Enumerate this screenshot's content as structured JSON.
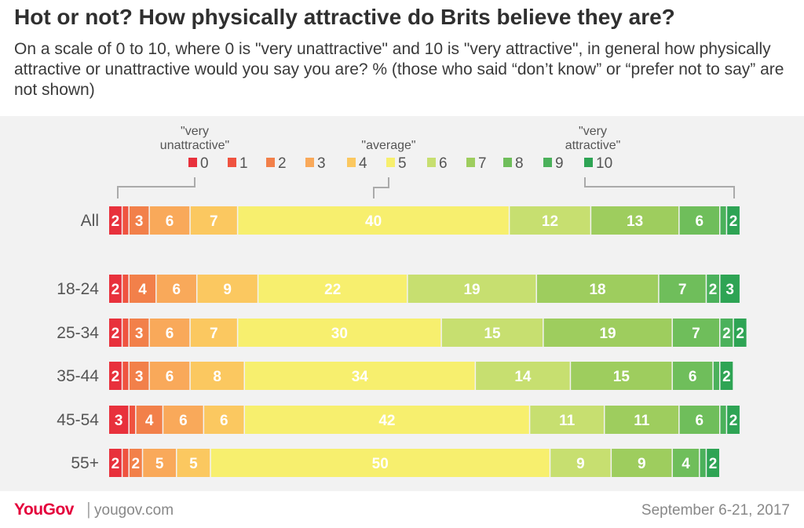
{
  "title": "Hot or not? How physically attractive do Brits believe they are?",
  "subtitle": "On a scale of 0 to 10, where 0 is \"very unattractive\" and 10 is \"very attractive\", in general how physically attractive or unattractive would you say you are? % (those who said “don’t know” or “prefer not to say” are not shown)",
  "footer": {
    "brand": "YouGov",
    "separator": "|",
    "site": "yougov.com",
    "date": "September 6-21, 2017"
  },
  "chart_data": {
    "type": "bar",
    "orientation": "horizontal",
    "stacked": true,
    "unit": "%",
    "legend_position": "top",
    "legend_annotations": [
      "\"very unattractive\"",
      "\"average\"",
      "\"very attractive\""
    ],
    "series_names": [
      "0",
      "1",
      "2",
      "3",
      "4",
      "5",
      "6",
      "7",
      "8",
      "9",
      "10"
    ],
    "colors": [
      "#e8313c",
      "#ef5340",
      "#f2804a",
      "#f9a95a",
      "#fbc860",
      "#f7ef6e",
      "#c7df70",
      "#9ecd5e",
      "#6fbe5b",
      "#4bb15b",
      "#2ea454"
    ],
    "categories": [
      "All",
      "18-24",
      "25-34",
      "35-44",
      "45-54",
      "55+"
    ],
    "values": [
      [
        2,
        1,
        3,
        6,
        7,
        40,
        12,
        13,
        6,
        1,
        2
      ],
      [
        2,
        1,
        4,
        6,
        9,
        22,
        19,
        18,
        7,
        2,
        3
      ],
      [
        2,
        1,
        3,
        6,
        7,
        30,
        15,
        19,
        7,
        2,
        2
      ],
      [
        2,
        1,
        3,
        6,
        8,
        34,
        14,
        15,
        6,
        1,
        2
      ],
      [
        3,
        1,
        4,
        6,
        6,
        42,
        11,
        11,
        6,
        1,
        2
      ],
      [
        2,
        1,
        2,
        5,
        5,
        50,
        9,
        9,
        4,
        1,
        2
      ]
    ],
    "label_threshold": 2
  }
}
